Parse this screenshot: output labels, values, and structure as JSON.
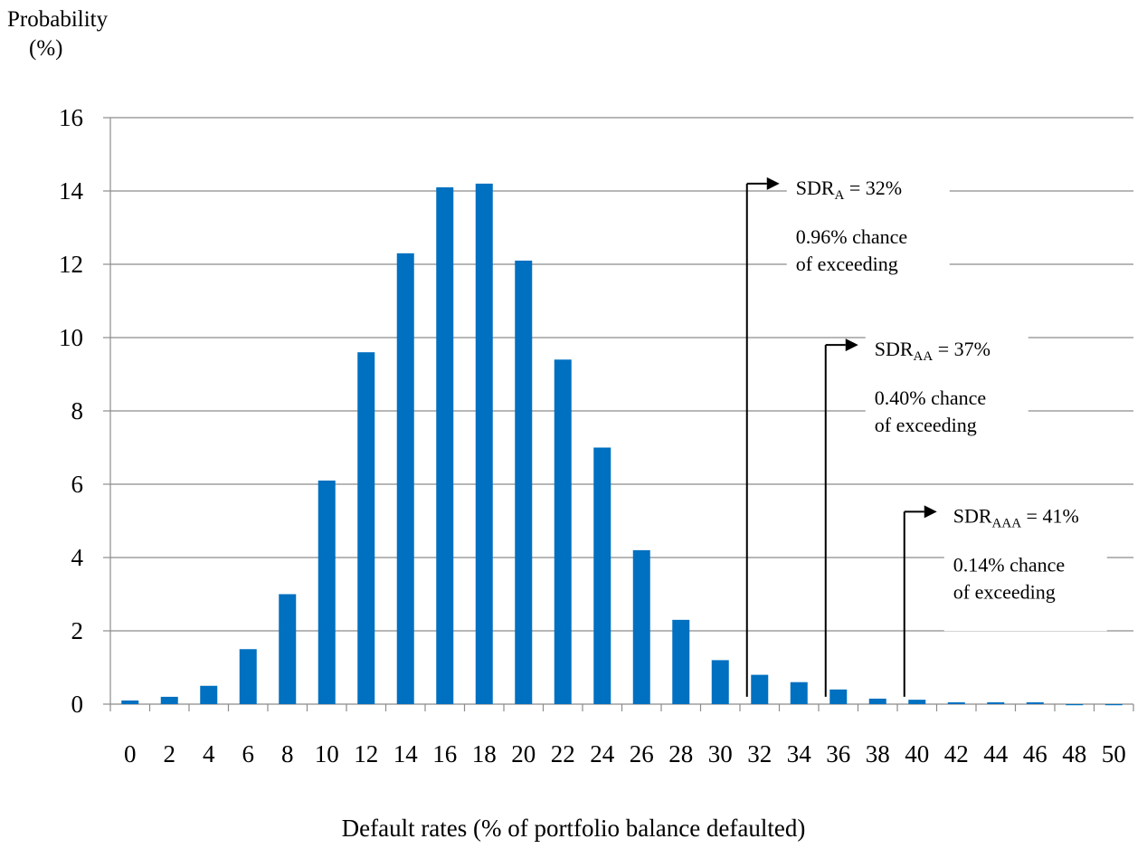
{
  "chart_data": {
    "type": "bar",
    "ylabel_line1": "Probability",
    "ylabel_line2": "(%)",
    "xlabel": "Default rates (% of portfolio balance defaulted)",
    "ylim": [
      0,
      16
    ],
    "yticks": [
      0,
      2,
      4,
      6,
      8,
      10,
      12,
      14,
      16
    ],
    "grid": true,
    "bar_color": "#0070C0",
    "categories": [
      "0",
      "2",
      "4",
      "6",
      "8",
      "10",
      "12",
      "14",
      "16",
      "18",
      "20",
      "22",
      "24",
      "26",
      "28",
      "30",
      "32",
      "34",
      "36",
      "38",
      "40",
      "42",
      "44",
      "46",
      "48",
      "50"
    ],
    "values": [
      0.1,
      0.2,
      0.5,
      1.5,
      3.0,
      6.1,
      9.6,
      12.3,
      14.1,
      14.2,
      12.1,
      9.4,
      7.0,
      4.2,
      2.3,
      1.2,
      0.8,
      0.6,
      0.4,
      0.15,
      0.12,
      0.05,
      0.05,
      0.05,
      -0.03,
      -0.03
    ],
    "annotations": [
      {
        "label_main": "SDR",
        "label_sub": "A",
        "label_rest": " = 32%",
        "line1": "0.96% chance",
        "line2": "of exceeding",
        "x_category": "32",
        "arrow_top_value": 14.2,
        "box_top_value": 14.45
      },
      {
        "label_main": "SDR",
        "label_sub": "AA",
        "label_rest": " = 37%",
        "line1": "0.40% chance",
        "line2": "of exceeding",
        "x_category": "36",
        "arrow_top_value": 9.8,
        "box_top_value": 10.05
      },
      {
        "label_main": "SDR",
        "label_sub": "AAA",
        "label_rest": " = 41%",
        "line1": "0.14% chance",
        "line2": "of exceeding",
        "x_category": "40",
        "arrow_top_value": 5.25,
        "box_top_value": 5.5
      }
    ]
  }
}
